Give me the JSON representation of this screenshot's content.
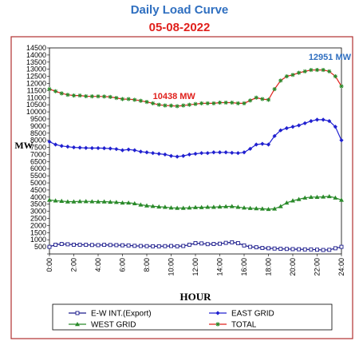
{
  "title": "Daily Load Curve",
  "subtitle": "05-08-2022",
  "chart_data": {
    "type": "line",
    "xlabel": "HOUR",
    "ylabel": "MW",
    "xlim": [
      0,
      24
    ],
    "ylim": [
      0,
      14500
    ],
    "x_ticks": [
      "0:00",
      "2:00",
      "4:00",
      "6:00",
      "8:00",
      "10:00",
      "12:00",
      "14:00",
      "16:00",
      "18:00",
      "20:00",
      "22:00",
      "24:00"
    ],
    "y_ticks": [
      0,
      500,
      1000,
      1500,
      2000,
      2500,
      3000,
      3500,
      4000,
      4500,
      5000,
      5500,
      6000,
      6500,
      7000,
      7500,
      8000,
      8500,
      9000,
      9500,
      10000,
      10500,
      11000,
      11500,
      12000,
      12500,
      13000,
      13500,
      14000,
      14500
    ],
    "x": [
      0,
      0.5,
      1,
      1.5,
      2,
      2.5,
      3,
      3.5,
      4,
      4.5,
      5,
      5.5,
      6,
      6.5,
      7,
      7.5,
      8,
      8.5,
      9,
      9.5,
      10,
      10.5,
      11,
      11.5,
      12,
      12.5,
      13,
      13.5,
      14,
      14.5,
      15,
      15.5,
      16,
      16.5,
      17,
      17.5,
      18,
      18.5,
      19,
      19.5,
      20,
      20.5,
      21,
      21.5,
      22,
      22.5,
      23,
      23.5,
      24
    ],
    "series": [
      {
        "name": "E-W INT.(Export)",
        "color": "#1a1a8c",
        "marker": "square",
        "values": [
          500,
          650,
          700,
          680,
          650,
          650,
          640,
          630,
          620,
          640,
          630,
          620,
          610,
          600,
          570,
          560,
          550,
          540,
          540,
          550,
          560,
          540,
          560,
          650,
          760,
          740,
          690,
          700,
          720,
          780,
          820,
          760,
          600,
          500,
          470,
          420,
          400,
          380,
          360,
          350,
          340,
          330,
          320,
          320,
          300,
          280,
          290,
          400,
          500
        ]
      },
      {
        "name": "EAST GRID",
        "color": "#2020d0",
        "marker": "diamond",
        "values": [
          7900,
          7700,
          7600,
          7550,
          7500,
          7480,
          7460,
          7450,
          7450,
          7440,
          7420,
          7380,
          7300,
          7350,
          7300,
          7200,
          7150,
          7100,
          7050,
          7000,
          6900,
          6850,
          6900,
          7000,
          7050,
          7100,
          7100,
          7150,
          7150,
          7150,
          7120,
          7100,
          7150,
          7400,
          7700,
          7750,
          7700,
          8300,
          8700,
          8850,
          8950,
          9050,
          9200,
          9350,
          9450,
          9450,
          9350,
          8950,
          8000
        ]
      },
      {
        "name": "WEST GRID",
        "color": "#2a8a2a",
        "marker": "triangle",
        "values": [
          3800,
          3750,
          3720,
          3680,
          3680,
          3700,
          3700,
          3690,
          3680,
          3680,
          3660,
          3640,
          3600,
          3600,
          3550,
          3460,
          3400,
          3360,
          3320,
          3300,
          3250,
          3230,
          3230,
          3250,
          3280,
          3280,
          3300,
          3300,
          3320,
          3340,
          3350,
          3300,
          3250,
          3220,
          3200,
          3180,
          3150,
          3180,
          3350,
          3600,
          3750,
          3850,
          3950,
          4000,
          4000,
          4020,
          4050,
          3950,
          3800
        ]
      },
      {
        "name": "TOTAL",
        "color": "#e0201c",
        "marker": "asterisk",
        "values": [
          11600,
          11450,
          11300,
          11200,
          11150,
          11150,
          11100,
          11090,
          11090,
          11080,
          11050,
          10980,
          10900,
          10900,
          10850,
          10780,
          10700,
          10600,
          10500,
          10450,
          10438,
          10400,
          10450,
          10500,
          10550,
          10600,
          10600,
          10600,
          10650,
          10650,
          10650,
          10600,
          10600,
          10800,
          11000,
          10900,
          10850,
          11600,
          12200,
          12500,
          12600,
          12750,
          12850,
          12950,
          12951,
          12951,
          12850,
          12500,
          11800
        ]
      }
    ],
    "annotations": [
      {
        "text": "10438 MW",
        "x": 8.5,
        "y": 10900,
        "color": "#e0201c"
      },
      {
        "text": "12951 MW",
        "x": 21.3,
        "y": 13650,
        "color": "#2f6fc0"
      }
    ],
    "grid": false,
    "legend_position": "bottom"
  }
}
